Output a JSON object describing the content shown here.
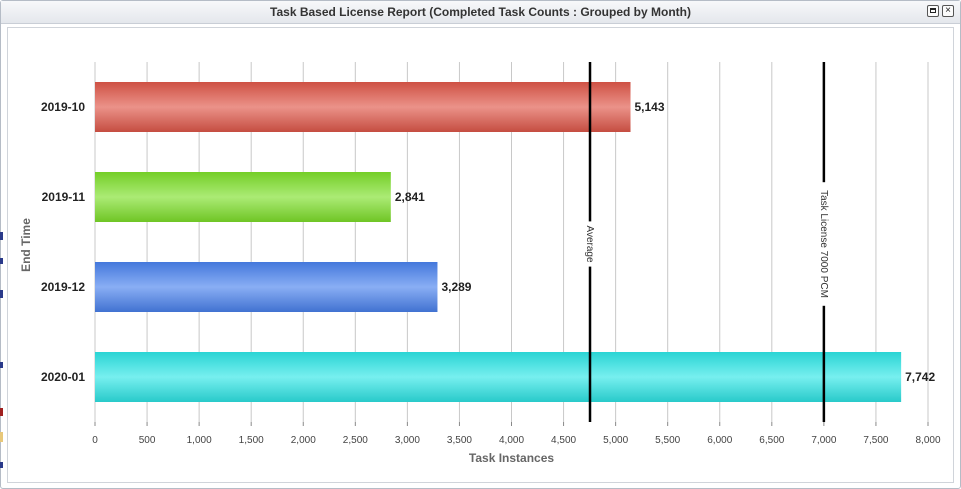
{
  "window": {
    "title": "Task Based License Report (Completed Task Counts : Grouped by Month)",
    "maximize_icon": "maximize-icon",
    "close_icon": "close-icon",
    "close_glyph": "×"
  },
  "chart_data": {
    "type": "bar",
    "orientation": "horizontal",
    "categories": [
      "2019-10",
      "2019-11",
      "2019-12",
      "2020-01"
    ],
    "values": [
      5143,
      2841,
      3289,
      7742
    ],
    "value_labels": [
      "5,143",
      "2,841",
      "3,289",
      "7,742"
    ],
    "colors": [
      "#e0584a",
      "#7ee02a",
      "#4a82ee",
      "#2ee6e6"
    ],
    "xlabel": "Task Instances",
    "ylabel": "End Time",
    "xlim": [
      0,
      8000
    ],
    "x_ticks": [
      0,
      500,
      1000,
      1500,
      2000,
      2500,
      3000,
      3500,
      4000,
      4500,
      5000,
      5500,
      6000,
      6500,
      7000,
      7500,
      8000
    ],
    "x_tick_labels": [
      "0",
      "500",
      "1,000",
      "1,500",
      "2,000",
      "2,500",
      "3,000",
      "3,500",
      "4,000",
      "4,500",
      "5,000",
      "5,500",
      "6,000",
      "6,500",
      "7,000",
      "7,500",
      "8,000"
    ],
    "grid": true,
    "reference_lines": [
      {
        "label": "Average",
        "value": 4754
      },
      {
        "label": "Task License 7000 PCM",
        "value": 7000
      }
    ]
  }
}
